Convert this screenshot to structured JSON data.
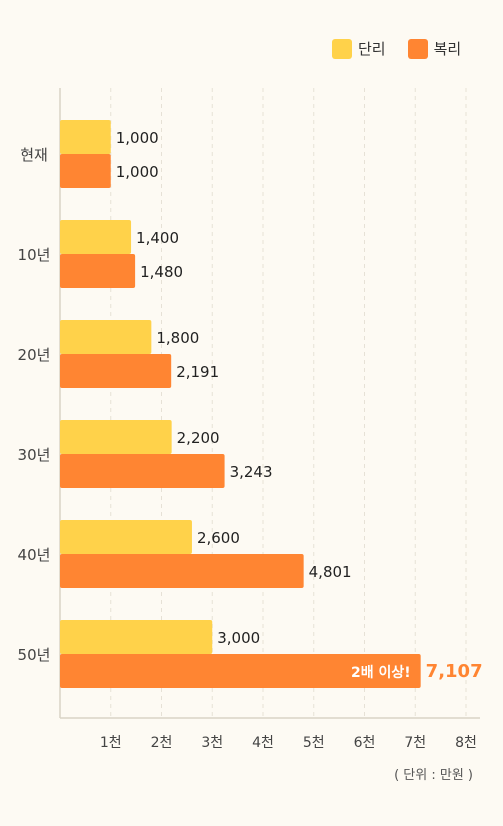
{
  "legend": {
    "simple": {
      "label": "단리",
      "color": "#ffd24a"
    },
    "compound": {
      "label": "복리",
      "color": "#ff8532"
    }
  },
  "unit_note": "( 단위 : 만원 )",
  "annotation": {
    "text": "2배 이상!",
    "color": "#ffffff"
  },
  "highlight_color": "#ff8532",
  "chart_data": {
    "type": "bar",
    "orientation": "horizontal",
    "categories": [
      "현재",
      "10년",
      "20년",
      "30년",
      "40년",
      "50년"
    ],
    "series": [
      {
        "name": "단리",
        "values": [
          1000,
          1400,
          1800,
          2200,
          2600,
          3000
        ],
        "labels": [
          "1,000",
          "1,400",
          "1,800",
          "2,200",
          "2,600",
          "3,000"
        ]
      },
      {
        "name": "복리",
        "values": [
          1000,
          1480,
          2191,
          3243,
          4801,
          7107
        ],
        "labels": [
          "1,000",
          "1,480",
          "2,191",
          "3,243",
          "4,801",
          "7,107"
        ]
      }
    ],
    "xlim": [
      0,
      8000
    ],
    "xticks": [
      1000,
      2000,
      3000,
      4000,
      5000,
      6000,
      7000,
      8000
    ],
    "xtick_labels": [
      "1천",
      "2천",
      "3천",
      "4천",
      "5천",
      "6천",
      "7천",
      "8천"
    ],
    "grid": "vertical dashed",
    "legend_position": "top-right"
  }
}
